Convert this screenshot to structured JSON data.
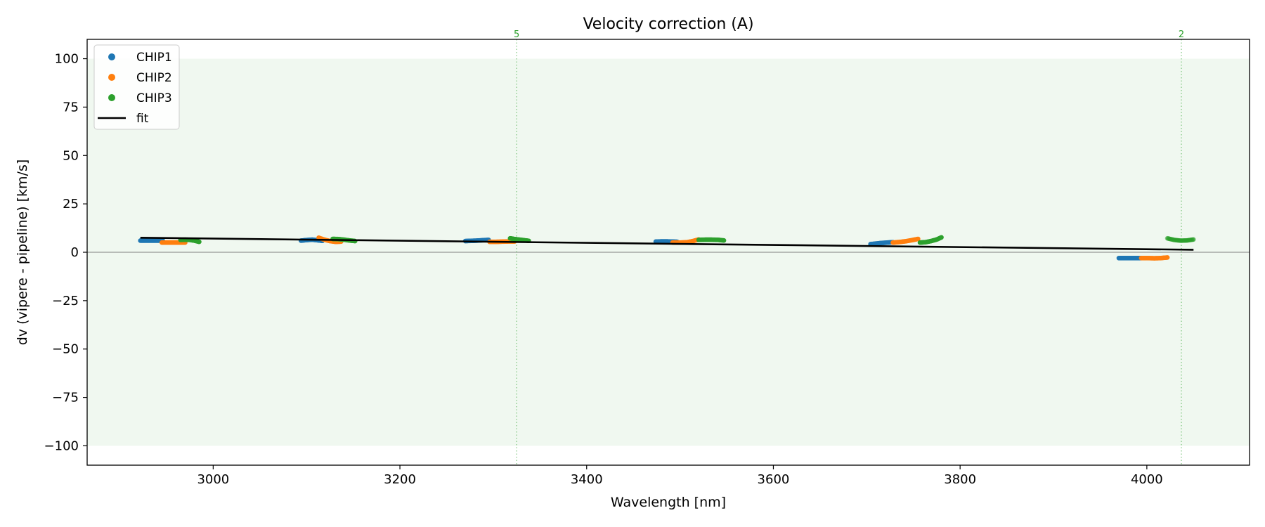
{
  "chart_data": {
    "type": "scatter",
    "title": "Velocity correction (A)",
    "xlabel": "Wavelength [nm]",
    "ylabel": "dv (vipere - pipeline) [km/s]",
    "xlim": [
      2865,
      4110
    ],
    "ylim": [
      -110,
      110
    ],
    "xticks": [
      3000,
      3200,
      3400,
      3600,
      3800,
      4000
    ],
    "xtick_labels": [
      "3000",
      "3200",
      "3400",
      "3600",
      "3800",
      "4000"
    ],
    "yticks": [
      100,
      75,
      50,
      25,
      0,
      -25,
      -50,
      -75,
      -100
    ],
    "ytick_labels": [
      "100",
      "75",
      "50",
      "25",
      "0",
      "−25",
      "−50",
      "−75",
      "−100"
    ],
    "grid": false,
    "legend_position": "top-left",
    "shaded_band": {
      "y": [
        -100,
        100
      ],
      "color": "#2ca02c"
    },
    "zero_line": 0,
    "series": [
      {
        "name": "CHIP1",
        "color": "#1f77b4",
        "segments": [
          {
            "x": [
              2922,
              2928,
              2934,
              2940,
              2946
            ],
            "y": [
              6.0,
              6.0,
              6.0,
              6.0,
              6.0
            ]
          },
          {
            "x": [
              3094,
              3100,
              3106,
              3112,
              3117
            ],
            "y": [
              6.0,
              6.3,
              6.5,
              6.2,
              5.9
            ]
          },
          {
            "x": [
              3270,
              3276,
              3282,
              3288,
              3295
            ],
            "y": [
              5.8,
              5.9,
              6.0,
              6.2,
              6.4
            ]
          },
          {
            "x": [
              3474,
              3480,
              3486,
              3492,
              3497
            ],
            "y": [
              5.5,
              5.6,
              5.6,
              5.5,
              5.4
            ]
          },
          {
            "x": [
              3704,
              3710,
              3716,
              3722,
              3728
            ],
            "y": [
              4.2,
              4.5,
              4.8,
              5.0,
              5.2
            ]
          },
          {
            "x": [
              3970,
              3976,
              3982,
              3988,
              3994
            ],
            "y": [
              -3.0,
              -3.0,
              -3.0,
              -3.0,
              -3.0
            ]
          }
        ]
      },
      {
        "name": "CHIP2",
        "color": "#ff7f0e",
        "segments": [
          {
            "x": [
              2945,
              2952,
              2958,
              2964,
              2970
            ],
            "y": [
              5.0,
              5.0,
              5.0,
              5.0,
              5.0
            ]
          },
          {
            "x": [
              3113,
              3119,
              3125,
              3131,
              3137
            ],
            "y": [
              7.5,
              6.5,
              5.8,
              5.4,
              5.5
            ]
          },
          {
            "x": [
              3296,
              3303,
              3310,
              3317,
              3323
            ],
            "y": [
              5.4,
              5.4,
              5.5,
              5.6,
              5.6
            ]
          },
          {
            "x": [
              3492,
              3500,
              3508,
              3514,
              3520
            ],
            "y": [
              5.0,
              5.0,
              5.2,
              5.8,
              6.6
            ]
          },
          {
            "x": [
              3728,
              3735,
              3742,
              3749,
              3755
            ],
            "y": [
              5.0,
              5.3,
              5.7,
              6.3,
              6.9
            ]
          },
          {
            "x": [
              3994,
              4001,
              4008,
              4015,
              4022
            ],
            "y": [
              -3.0,
              -3.0,
              -3.1,
              -3.0,
              -2.7
            ]
          }
        ]
      },
      {
        "name": "CHIP3",
        "color": "#2ca02c",
        "segments": [
          {
            "x": [
              2965,
              2970,
              2975,
              2980,
              2985
            ],
            "y": [
              6.4,
              6.5,
              6.4,
              6.0,
              5.4
            ]
          },
          {
            "x": [
              3128,
              3134,
              3140,
              3146,
              3152
            ],
            "y": [
              6.9,
              6.8,
              6.5,
              6.1,
              5.8
            ]
          },
          {
            "x": [
              3318,
              3323,
              3328,
              3333,
              3338
            ],
            "y": [
              7.2,
              6.8,
              6.5,
              6.2,
              5.9
            ]
          },
          {
            "x": [
              3520,
              3527,
              3534,
              3541,
              3547
            ],
            "y": [
              6.4,
              6.5,
              6.5,
              6.4,
              6.1
            ]
          },
          {
            "x": [
              3757,
              3763,
              3769,
              3775,
              3780
            ],
            "y": [
              5.0,
              5.2,
              5.8,
              6.6,
              7.7
            ]
          },
          {
            "x": [
              4022,
              4029,
              4036,
              4043,
              4050
            ],
            "y": [
              7.2,
              6.4,
              6.0,
              6.1,
              6.6
            ],
            "faded": true
          }
        ]
      }
    ],
    "fit": {
      "name": "fit",
      "color": "#000000",
      "x": [
        2922,
        4050
      ],
      "y": [
        7.5,
        1.3
      ]
    },
    "vlines": [
      {
        "x": 3325,
        "label": "5",
        "color": "#2ca02c"
      },
      {
        "x": 4037,
        "label": "2",
        "color": "#2ca02c"
      }
    ]
  }
}
